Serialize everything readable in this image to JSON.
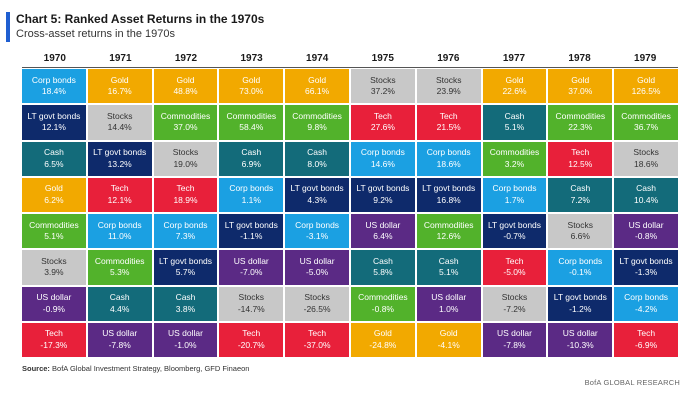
{
  "header": {
    "title": "Chart 5: Ranked Asset Returns in the 1970s",
    "subtitle": "Cross-asset returns in the 1970s"
  },
  "footer": {
    "source_label": "Source:",
    "source_text": " BofA Global Investment Strategy, Bloomberg, GFD Finaeon",
    "brand": "BofA GLOBAL RESEARCH"
  },
  "asset_colors": {
    "Corp bonds": "#1ba0e2",
    "Gold": "#f2a900",
    "LT govt bonds": "#0e2a6b",
    "Stocks": "#c8c8c8",
    "Commodities": "#52b22b",
    "Tech": "#e8203a",
    "Cash": "#136b7a",
    "US dollar": "#5b2a85"
  },
  "chart_data": {
    "type": "table",
    "title": "Chart 5: Ranked Asset Returns in the 1970s",
    "subtitle": "Cross-asset returns in the 1970s",
    "years": [
      "1970",
      "1971",
      "1972",
      "1973",
      "1974",
      "1975",
      "1976",
      "1977",
      "1978",
      "1979"
    ],
    "ranks": [
      [
        {
          "asset": "Corp bonds",
          "value": "18.4%"
        },
        {
          "asset": "LT govt bonds",
          "value": "12.1%"
        },
        {
          "asset": "Cash",
          "value": "6.5%"
        },
        {
          "asset": "Gold",
          "value": "6.2%"
        },
        {
          "asset": "Commodities",
          "value": "5.1%"
        },
        {
          "asset": "Stocks",
          "value": "3.9%"
        },
        {
          "asset": "US dollar",
          "value": "-0.9%"
        },
        {
          "asset": "Tech",
          "value": "-17.3%"
        }
      ],
      [
        {
          "asset": "Gold",
          "value": "16.7%"
        },
        {
          "asset": "Stocks",
          "value": "14.4%"
        },
        {
          "asset": "LT govt bonds",
          "value": "13.2%"
        },
        {
          "asset": "Tech",
          "value": "12.1%"
        },
        {
          "asset": "Corp bonds",
          "value": "11.0%"
        },
        {
          "asset": "Commodities",
          "value": "5.3%"
        },
        {
          "asset": "Cash",
          "value": "4.4%"
        },
        {
          "asset": "US dollar",
          "value": "-7.8%"
        }
      ],
      [
        {
          "asset": "Gold",
          "value": "48.8%"
        },
        {
          "asset": "Commodities",
          "value": "37.0%"
        },
        {
          "asset": "Stocks",
          "value": "19.0%"
        },
        {
          "asset": "Tech",
          "value": "18.9%"
        },
        {
          "asset": "Corp bonds",
          "value": "7.3%"
        },
        {
          "asset": "LT govt bonds",
          "value": "5.7%"
        },
        {
          "asset": "Cash",
          "value": "3.8%"
        },
        {
          "asset": "US dollar",
          "value": "-1.0%"
        }
      ],
      [
        {
          "asset": "Gold",
          "value": "73.0%"
        },
        {
          "asset": "Commodities",
          "value": "58.4%"
        },
        {
          "asset": "Cash",
          "value": "6.9%"
        },
        {
          "asset": "Corp bonds",
          "value": "1.1%"
        },
        {
          "asset": "LT govt bonds",
          "value": "-1.1%"
        },
        {
          "asset": "US dollar",
          "value": "-7.0%"
        },
        {
          "asset": "Stocks",
          "value": "-14.7%"
        },
        {
          "asset": "Tech",
          "value": "-20.7%"
        }
      ],
      [
        {
          "asset": "Gold",
          "value": "66.1%"
        },
        {
          "asset": "Commodities",
          "value": "9.8%"
        },
        {
          "asset": "Cash",
          "value": "8.0%"
        },
        {
          "asset": "LT govt bonds",
          "value": "4.3%"
        },
        {
          "asset": "Corp bonds",
          "value": "-3.1%"
        },
        {
          "asset": "US dollar",
          "value": "-5.0%"
        },
        {
          "asset": "Stocks",
          "value": "-26.5%"
        },
        {
          "asset": "Tech",
          "value": "-37.0%"
        }
      ],
      [
        {
          "asset": "Stocks",
          "value": "37.2%"
        },
        {
          "asset": "Tech",
          "value": "27.6%"
        },
        {
          "asset": "Corp bonds",
          "value": "14.6%"
        },
        {
          "asset": "LT govt bonds",
          "value": "9.2%"
        },
        {
          "asset": "US dollar",
          "value": "6.4%"
        },
        {
          "asset": "Cash",
          "value": "5.8%"
        },
        {
          "asset": "Commodities",
          "value": "-0.8%"
        },
        {
          "asset": "Gold",
          "value": "-24.8%"
        }
      ],
      [
        {
          "asset": "Stocks",
          "value": "23.9%"
        },
        {
          "asset": "Tech",
          "value": "21.5%"
        },
        {
          "asset": "Corp bonds",
          "value": "18.6%"
        },
        {
          "asset": "LT govt bonds",
          "value": "16.8%"
        },
        {
          "asset": "Commodities",
          "value": "12.6%"
        },
        {
          "asset": "Cash",
          "value": "5.1%"
        },
        {
          "asset": "US dollar",
          "value": "1.0%"
        },
        {
          "asset": "Gold",
          "value": "-4.1%"
        }
      ],
      [
        {
          "asset": "Gold",
          "value": "22.6%"
        },
        {
          "asset": "Cash",
          "value": "5.1%"
        },
        {
          "asset": "Commodities",
          "value": "3.2%"
        },
        {
          "asset": "Corp bonds",
          "value": "1.7%"
        },
        {
          "asset": "LT govt bonds",
          "value": "-0.7%"
        },
        {
          "asset": "Tech",
          "value": "-5.0%"
        },
        {
          "asset": "Stocks",
          "value": "-7.2%"
        },
        {
          "asset": "US dollar",
          "value": "-7.8%"
        }
      ],
      [
        {
          "asset": "Gold",
          "value": "37.0%"
        },
        {
          "asset": "Commodities",
          "value": "22.3%"
        },
        {
          "asset": "Tech",
          "value": "12.5%"
        },
        {
          "asset": "Cash",
          "value": "7.2%"
        },
        {
          "asset": "Stocks",
          "value": "6.6%"
        },
        {
          "asset": "Corp bonds",
          "value": "-0.1%"
        },
        {
          "asset": "LT govt bonds",
          "value": "-1.2%"
        },
        {
          "asset": "US dollar",
          "value": "-10.3%"
        }
      ],
      [
        {
          "asset": "Gold",
          "value": "126.5%"
        },
        {
          "asset": "Commodities",
          "value": "36.7%"
        },
        {
          "asset": "Stocks",
          "value": "18.6%"
        },
        {
          "asset": "Cash",
          "value": "10.4%"
        },
        {
          "asset": "US dollar",
          "value": "-0.8%"
        },
        {
          "asset": "LT govt bonds",
          "value": "-1.3%"
        },
        {
          "asset": "Corp bonds",
          "value": "-4.2%"
        },
        {
          "asset": "Tech",
          "value": "-6.9%"
        }
      ]
    ]
  }
}
